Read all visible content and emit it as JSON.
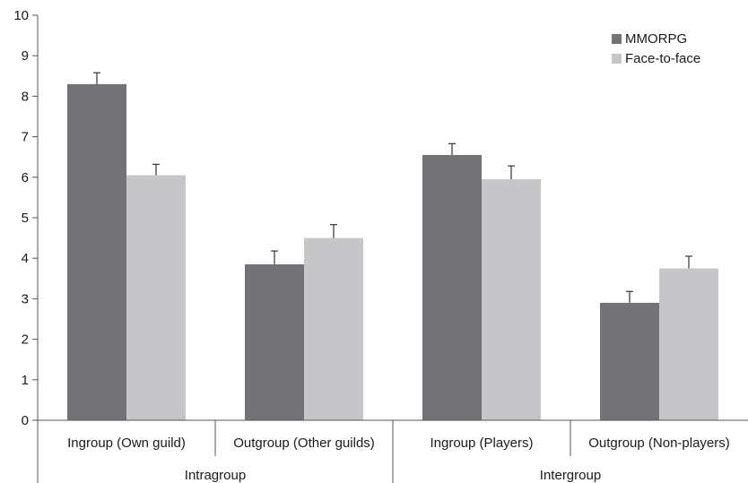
{
  "chart_data": {
    "type": "bar",
    "categories": [
      "Ingroup (Own guild)",
      "Outgroup (Other guilds)",
      "Ingroup (Players)",
      "Outgroup (Non-players)"
    ],
    "groups": [
      {
        "label": "Intragroup",
        "categories": [
          0,
          1
        ]
      },
      {
        "label": "Intergroup",
        "categories": [
          2,
          3
        ]
      }
    ],
    "series": [
      {
        "name": "MMORPG",
        "color": "#737377",
        "values": [
          8.3,
          3.85,
          6.55,
          2.9
        ],
        "errors": [
          0.28,
          0.33,
          0.28,
          0.28
        ]
      },
      {
        "name": "Face-to-face",
        "color": "#c6c6c8",
        "values": [
          6.05,
          4.5,
          5.95,
          3.75
        ],
        "errors": [
          0.27,
          0.33,
          0.33,
          0.3
        ]
      }
    ],
    "yticks": [
      0,
      1,
      2,
      3,
      4,
      5,
      6,
      7,
      8,
      9,
      10
    ],
    "ylim": [
      0,
      10
    ],
    "grid": false,
    "legend_position": "top-right"
  }
}
